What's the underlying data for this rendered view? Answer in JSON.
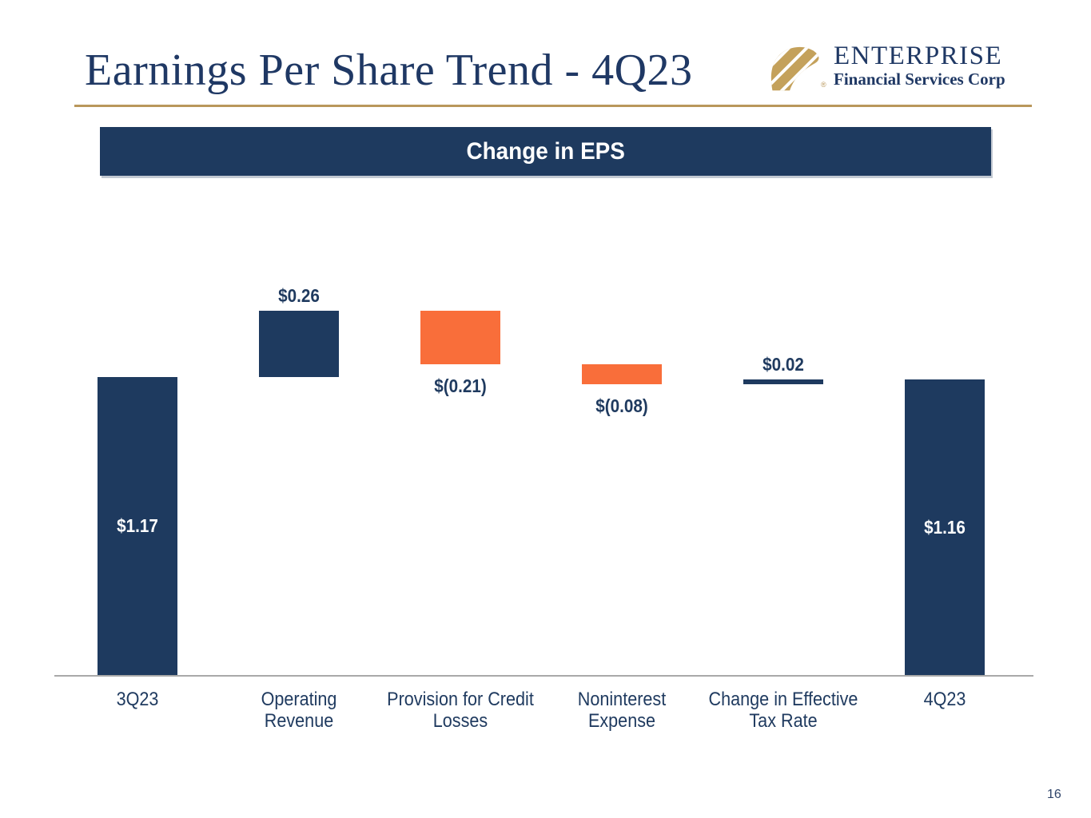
{
  "slide": {
    "title": "Earnings Per Share Trend - 4Q23",
    "page_number": "16"
  },
  "logo": {
    "company": "ENTERPRISE",
    "tagline": "Financial Services Corp",
    "mark": "gold-diagonal-stripes-leaf",
    "registered_mark": "®"
  },
  "banner": {
    "title": "Change in EPS"
  },
  "colors": {
    "navy": "#1e3a5f",
    "orange": "#f96e3a",
    "gold_rule": "#b9975b",
    "gold_logo": "#c4a15b",
    "title_text": "#1f3864",
    "label_text": "#1f3a5f",
    "inside_label_text": "#ffffff",
    "axis_line": "#a9a9a9"
  },
  "chart_data": {
    "type": "bar",
    "subtype": "waterfall",
    "title": "Change in EPS",
    "unit": "dollars per share",
    "xlabel": "",
    "ylabel": "",
    "ylim": [
      0,
      1.55
    ],
    "gridlines": false,
    "legend": false,
    "categories": [
      "3Q23",
      "Operating Revenue",
      "Provision for Credit Losses",
      "Noninterest Expense",
      "Change in Effective Tax Rate",
      "4Q23"
    ],
    "bars": [
      {
        "category_lines": "3Q23",
        "value": 1.17,
        "display_value": "$1.17",
        "kind": "total",
        "label_position": "inside"
      },
      {
        "category_lines": "Operating\nRevenue",
        "value": 0.26,
        "display_value": "$0.26",
        "kind": "increase",
        "label_position": "above"
      },
      {
        "category_lines": "Provision for Credit\nLosses",
        "value": -0.21,
        "display_value": "$(0.21)",
        "kind": "decrease",
        "label_position": "below"
      },
      {
        "category_lines": "Noninterest\nExpense",
        "value": -0.08,
        "display_value": "$(0.08)",
        "kind": "decrease",
        "label_position": "below"
      },
      {
        "category_lines": "Change in Effective\nTax Rate",
        "value": 0.02,
        "display_value": "$0.02",
        "kind": "increase",
        "label_position": "above"
      },
      {
        "category_lines": "4Q23",
        "value": 1.16,
        "display_value": "$1.16",
        "kind": "total",
        "label_position": "inside"
      }
    ]
  }
}
